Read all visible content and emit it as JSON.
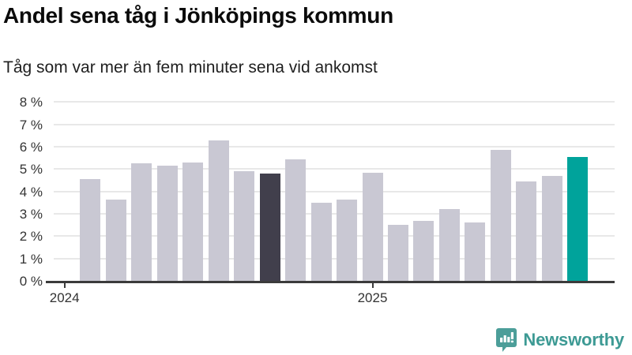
{
  "header": {
    "title": "Andel sena tåg i Jönköpings kommun",
    "subtitle": "Tåg som var mer än fem minuter sena vid ankomst"
  },
  "footer": {
    "brand": "Newsworthy"
  },
  "colors": {
    "bar": "#C9C8D3",
    "bar_dark": "#413F4C",
    "bar_accent": "#00A39B",
    "grid": "#E8E8E8",
    "axis": "#3B3B3B",
    "tick_text": "#333333",
    "brand_teal": "#3D9A94",
    "logo_icon_teal": "#4C9E99"
  },
  "chart_data": {
    "type": "bar",
    "title": "Andel sena tåg i Jönköpings kommun",
    "subtitle": "Tåg som var mer än fem minuter sena vid ankomst",
    "unit": "%",
    "values": [
      4.55,
      3.65,
      5.25,
      5.15,
      5.3,
      6.3,
      4.9,
      4.8,
      5.45,
      3.5,
      3.65,
      4.85,
      2.5,
      2.7,
      3.2,
      2.6,
      5.85,
      4.45,
      4.7,
      5.55
    ],
    "highlight_dark_index": 7,
    "highlight_accent_index": 19,
    "ylim": [
      0,
      8
    ],
    "y_tick_labels": [
      "0 %",
      "1 %",
      "2 %",
      "3 %",
      "4 %",
      "5 %",
      "6 %",
      "7 %",
      "8 %"
    ],
    "x_tick_labels": [
      "2024",
      "2025"
    ],
    "x_tick_slots": [
      0,
      12
    ],
    "grid": true,
    "legend": false
  }
}
